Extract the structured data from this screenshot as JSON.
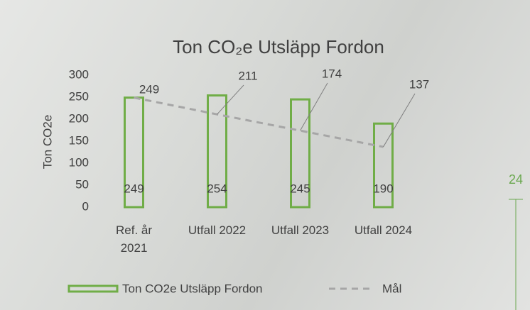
{
  "chart_data": {
    "type": "bar-line",
    "title": "Ton CO₂e Utsläpp Fordon",
    "y_axis_label": "Ton CO2e",
    "categories": [
      "Ref. år\n2021",
      "Utfall 2022",
      "Utfall 2023",
      "Utfall 2024"
    ],
    "series": [
      {
        "name": "Ton CO2e Utsläpp Fordon",
        "type": "bar",
        "color": "#70ad47",
        "values": [
          249,
          254,
          245,
          190
        ]
      },
      {
        "name": "Mål",
        "type": "line",
        "color": "#a6a6a6",
        "dashed": true,
        "values": [
          249,
          211,
          174,
          137
        ]
      }
    ],
    "ylim": [
      0,
      300
    ],
    "yticks": [
      0,
      50,
      100,
      150,
      200,
      250,
      300
    ],
    "legend": "bottom"
  },
  "page_number": "24"
}
